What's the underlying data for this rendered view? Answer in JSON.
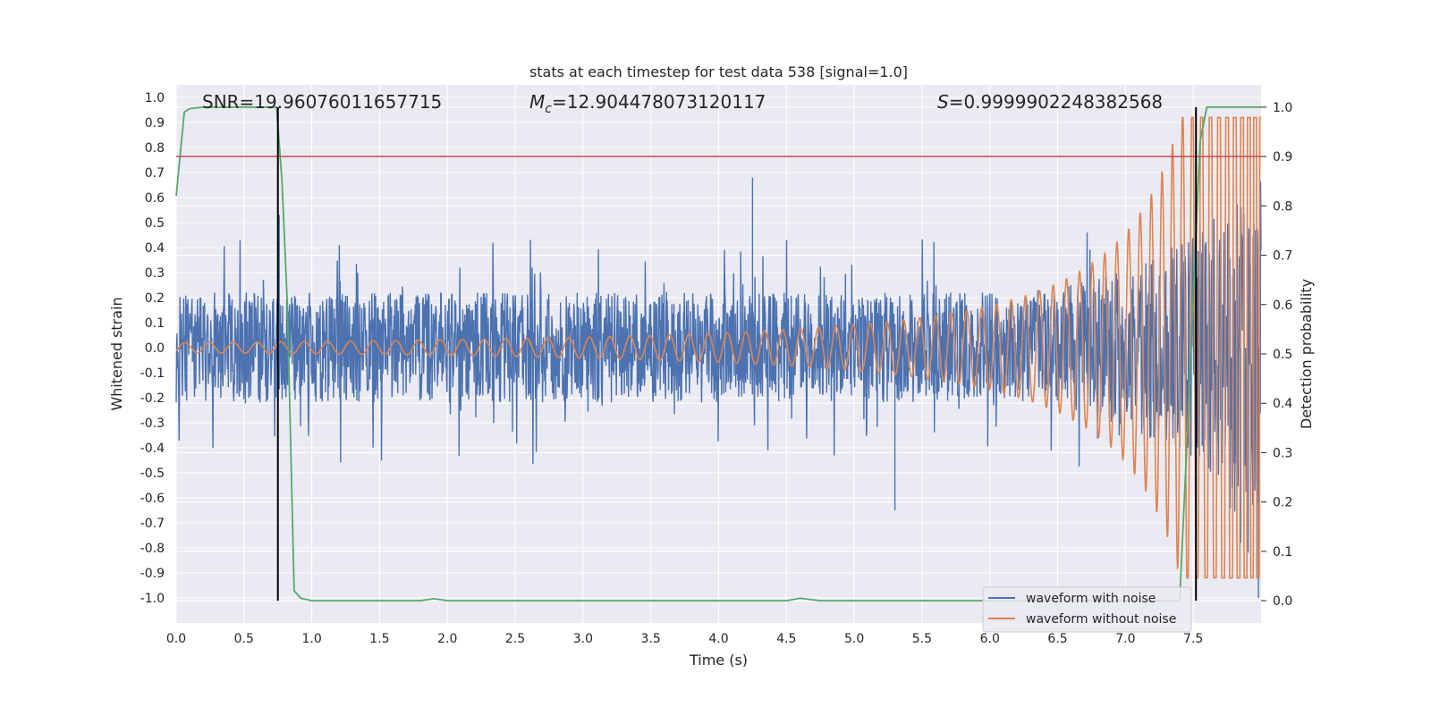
{
  "chart_data": {
    "type": "line",
    "title": "stats at each timestep for test data 538 [signal=1.0]",
    "xlabel": "Time (s)",
    "ylabel": "Whitened strain",
    "y2label": "Detection probability",
    "xlim": [
      0.0,
      8.0
    ],
    "ylim": [
      -1.1,
      1.05
    ],
    "y2lim": [
      -0.045,
      1.045
    ],
    "xticks": [
      "0.0",
      "0.5",
      "1.0",
      "1.5",
      "2.0",
      "2.5",
      "3.0",
      "3.5",
      "4.0",
      "4.5",
      "5.0",
      "5.5",
      "6.0",
      "6.5",
      "7.0",
      "7.5"
    ],
    "yticks": [
      "1.0",
      "0.9",
      "0.8",
      "0.7",
      "0.6",
      "0.5",
      "0.4",
      "0.3",
      "0.2",
      "0.1",
      "0.0",
      "-0.1",
      "-0.2",
      "-0.3",
      "-0.4",
      "-0.5",
      "-0.6",
      "-0.7",
      "-0.8",
      "-0.9",
      "-1.0"
    ],
    "y2ticks": [
      "1.0",
      "0.9",
      "0.8",
      "0.7",
      "0.6",
      "0.5",
      "0.4",
      "0.3",
      "0.2",
      "0.1",
      "0.0"
    ],
    "annotations": {
      "snr": "SNR=19.96076011657715",
      "mc_symbol": "M",
      "mc_sub": "c",
      "mc_value": "=12.904478073120117",
      "s_symbol": "S",
      "s_value": "=0.9999902248382568"
    },
    "threshold": {
      "y2": 0.9,
      "color": "#c44e52"
    },
    "vertical_lines": [
      0.75,
      7.52
    ],
    "series": [
      {
        "name": "waveform with noise",
        "color": "#4c72b0",
        "envelope_base": 0.22,
        "spikes": [
          [
            0.76,
            0.53
          ],
          [
            4.25,
            0.68
          ],
          [
            5.3,
            -0.65
          ],
          [
            7.55,
            0.65
          ],
          [
            7.85,
            -0.78
          ],
          [
            7.98,
            -1.0
          ]
        ]
      },
      {
        "name": "waveform without noise",
        "color": "#dd8452",
        "start_amp": 0.02,
        "end_amp": 0.92
      },
      {
        "name": "",
        "color": "#55a868",
        "x": [
          0.0,
          0.06,
          0.1,
          0.2,
          0.5,
          0.74,
          0.78,
          0.82,
          0.87,
          0.92,
          1.0,
          1.8,
          1.9,
          2.0,
          4.5,
          4.6,
          4.75,
          5.0,
          7.0,
          7.4,
          7.45,
          7.5,
          7.55,
          7.6,
          8.0
        ],
        "y": [
          0.82,
          0.99,
          0.997,
          1.0,
          1.0,
          1.0,
          0.85,
          0.6,
          0.02,
          0.005,
          0.0,
          0.0,
          0.004,
          0.0,
          0.0,
          0.005,
          0.0,
          0.0,
          0.0,
          0.0,
          0.3,
          0.62,
          0.93,
          1.0,
          1.0
        ]
      }
    ],
    "legend": {
      "position": "lower right",
      "labels": [
        "waveform with noise",
        "waveform without noise"
      ]
    },
    "grid": true,
    "background": "#eaeaf2"
  }
}
